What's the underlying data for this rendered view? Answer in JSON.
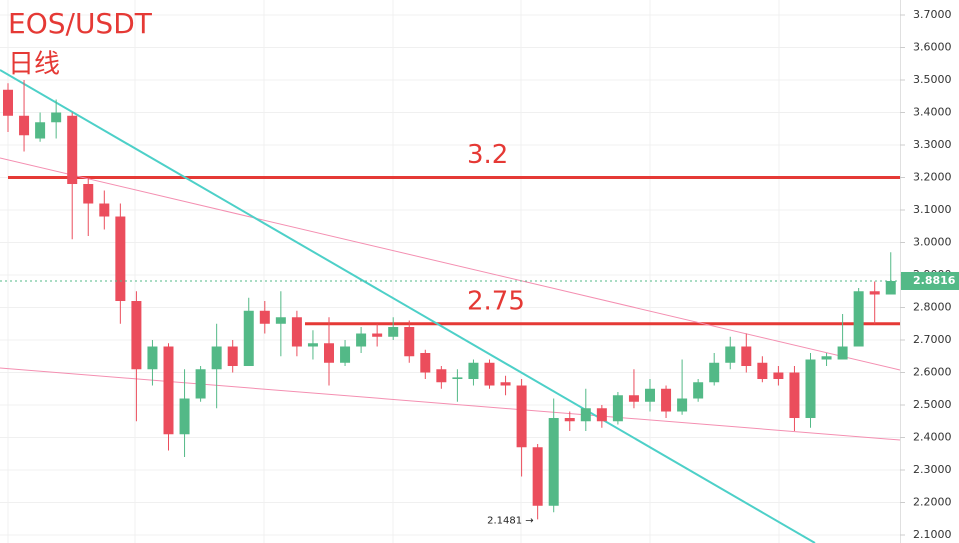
{
  "chart_data": {
    "type": "candlestick",
    "title": "EOS/USDT",
    "subtitle": "日线",
    "open": [
      3.47,
      3.39,
      3.32,
      3.37,
      3.39,
      3.18,
      3.12,
      3.08,
      2.82,
      2.61,
      2.68,
      2.41,
      2.52,
      2.61,
      2.68,
      2.62,
      2.79,
      2.75,
      2.77,
      2.68,
      2.69,
      2.63,
      2.68,
      2.72,
      2.71,
      2.74,
      2.66,
      2.61,
      2.58,
      2.58,
      2.63,
      2.57,
      2.56,
      2.37,
      2.19,
      2.46,
      2.45,
      2.49,
      2.45,
      2.53,
      2.51,
      2.55,
      2.48,
      2.52,
      2.57,
      2.63,
      2.68,
      2.63,
      2.6,
      2.6,
      2.46,
      2.64,
      2.64,
      2.68,
      2.85,
      2.84
    ],
    "high": [
      3.49,
      3.5,
      3.4,
      3.44,
      3.4,
      3.2,
      3.16,
      3.12,
      2.85,
      2.7,
      2.69,
      2.61,
      2.62,
      2.75,
      2.7,
      2.83,
      2.82,
      2.85,
      2.79,
      2.73,
      2.77,
      2.7,
      2.74,
      2.75,
      2.77,
      2.76,
      2.67,
      2.62,
      2.61,
      2.64,
      2.64,
      2.59,
      2.58,
      2.38,
      2.52,
      2.48,
      2.55,
      2.5,
      2.54,
      2.61,
      2.58,
      2.56,
      2.64,
      2.58,
      2.66,
      2.71,
      2.72,
      2.65,
      2.62,
      2.62,
      2.66,
      2.66,
      2.78,
      2.86,
      2.88,
      2.97
    ],
    "low": [
      3.34,
      3.28,
      3.31,
      3.32,
      3.01,
      3.02,
      3.04,
      2.75,
      2.45,
      2.56,
      2.36,
      2.34,
      2.51,
      2.49,
      2.6,
      2.62,
      2.72,
      2.65,
      2.65,
      2.64,
      2.56,
      2.62,
      2.66,
      2.68,
      2.7,
      2.63,
      2.58,
      2.55,
      2.51,
      2.56,
      2.55,
      2.53,
      2.28,
      2.1481,
      2.17,
      2.42,
      2.42,
      2.43,
      2.44,
      2.49,
      2.48,
      2.46,
      2.47,
      2.51,
      2.56,
      2.61,
      2.6,
      2.57,
      2.56,
      2.42,
      2.43,
      2.62,
      2.64,
      2.68,
      2.75,
      2.84
    ],
    "close": [
      3.39,
      3.33,
      3.37,
      3.4,
      3.18,
      3.12,
      3.08,
      2.82,
      2.61,
      2.68,
      2.41,
      2.52,
      2.61,
      2.68,
      2.62,
      2.79,
      2.75,
      2.77,
      2.68,
      2.69,
      2.63,
      2.68,
      2.72,
      2.71,
      2.74,
      2.65,
      2.6,
      2.57,
      2.585,
      2.63,
      2.56,
      2.56,
      2.37,
      2.19,
      2.46,
      2.45,
      2.49,
      2.45,
      2.53,
      2.51,
      2.55,
      2.48,
      2.52,
      2.57,
      2.63,
      2.68,
      2.62,
      2.58,
      2.58,
      2.46,
      2.64,
      2.65,
      2.68,
      2.85,
      2.84,
      2.8816
    ],
    "up_color": "#53b987",
    "down_color": "#eb4d5c",
    "ylim": [
      2.0754,
      3.7462
    ],
    "yticks": [
      {
        "value": 3.7,
        "label": "3.7000"
      },
      {
        "value": 3.6,
        "label": "3.6000"
      },
      {
        "value": 3.5,
        "label": "3.5000"
      },
      {
        "value": 3.4,
        "label": "3.4000"
      },
      {
        "value": 3.3,
        "label": "3.3000"
      },
      {
        "value": 3.2,
        "label": "3.2000"
      },
      {
        "value": 3.1,
        "label": "3.1000"
      },
      {
        "value": 3.0,
        "label": "3.0000"
      },
      {
        "value": 2.9,
        "label": "2.9000"
      },
      {
        "value": 2.8,
        "label": "2.8000"
      },
      {
        "value": 2.7,
        "label": "2.7000"
      },
      {
        "value": 2.6,
        "label": "2.6000"
      },
      {
        "value": 2.5,
        "label": "2.5000"
      },
      {
        "value": 2.4,
        "label": "2.4000"
      },
      {
        "value": 2.3,
        "label": "2.3000"
      },
      {
        "value": 2.2,
        "label": "2.2000"
      },
      {
        "value": 2.1,
        "label": "2.1000"
      }
    ],
    "grid": true,
    "levels": [
      {
        "value": 3.2,
        "label": "3.2"
      },
      {
        "value": 2.75,
        "label": "2.75"
      }
    ],
    "level_color": "#e53935",
    "last_price": {
      "value": 2.8816,
      "label": "2.8816"
    },
    "low_marker": {
      "value": 2.1481,
      "label": "2.1481 →"
    }
  }
}
